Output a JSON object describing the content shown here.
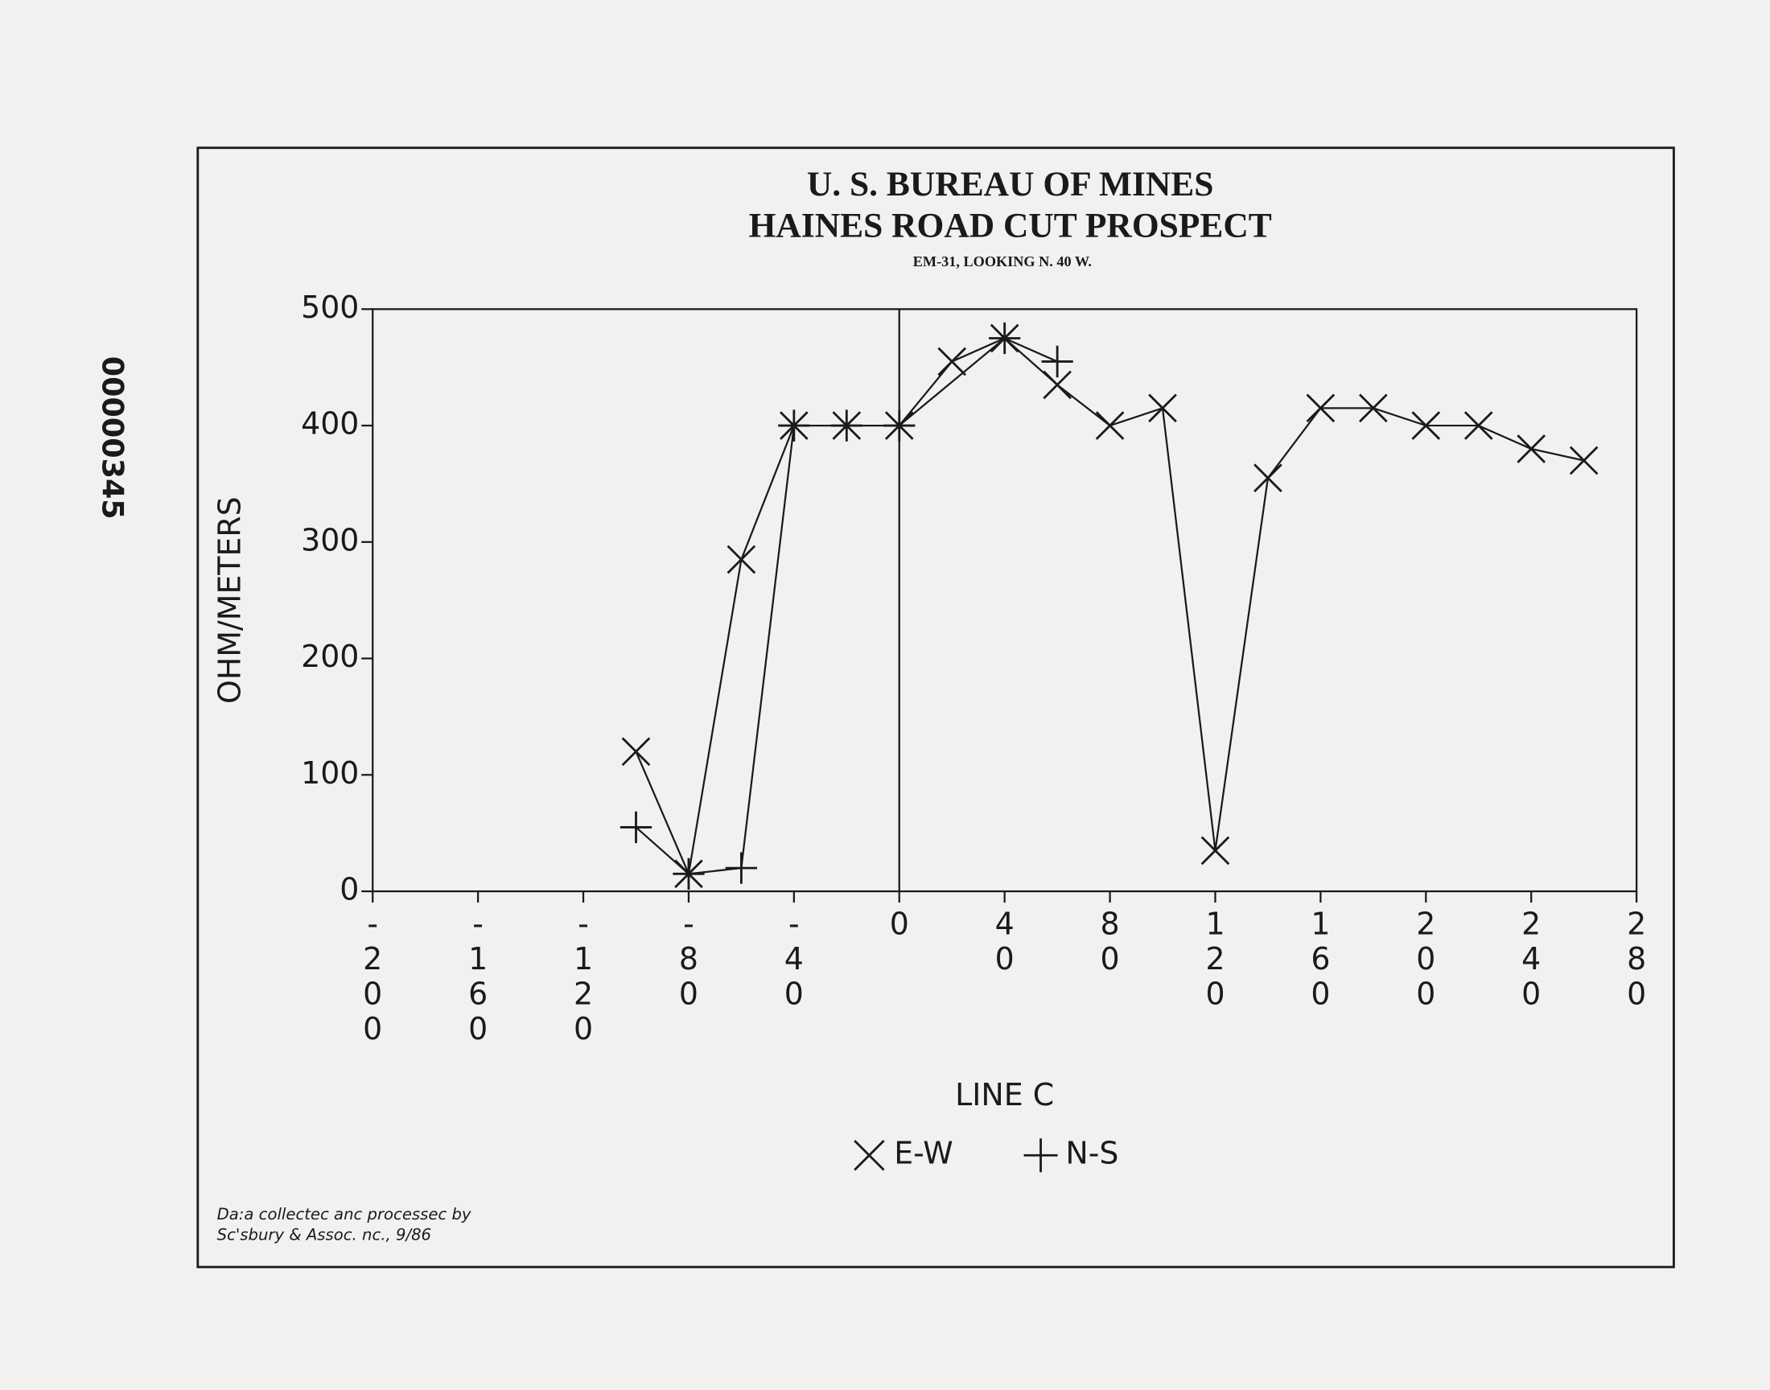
{
  "page_stamp": "00000345",
  "chart_data": {
    "type": "line",
    "title": "U. S. BUREAU OF MINES",
    "subtitle": "HAINES ROAD CUT PROSPECT",
    "caption": "EM-31, LOOKING N. 40 W.",
    "y_label": "OHM/METERS",
    "x_label": "LINE C",
    "xlim": [
      -200,
      280
    ],
    "xticks": [
      -200,
      -160,
      -120,
      -80,
      -40,
      0,
      40,
      80,
      120,
      160,
      200,
      240,
      280
    ],
    "ylim": [
      0,
      500
    ],
    "yticks": [
      0,
      100,
      200,
      300,
      400,
      500
    ],
    "series": [
      {
        "name": "E-W",
        "marker": "x",
        "color": "#1a1a1a",
        "x": [
          -100,
          -80,
          -60,
          -40,
          -20,
          0,
          20,
          40,
          60,
          80,
          100,
          120,
          140,
          160,
          180,
          200,
          220,
          240,
          260
        ],
        "values": [
          120,
          15,
          285,
          400,
          400,
          400,
          455,
          475,
          435,
          400,
          415,
          35,
          355,
          415,
          415,
          400,
          400,
          380,
          370
        ]
      },
      {
        "name": "N-S",
        "marker": "plus",
        "color": "#1a1a1a",
        "x": [
          -100,
          -80,
          -60,
          -40,
          -20,
          0,
          40,
          60
        ],
        "values": [
          55,
          15,
          20,
          400,
          400,
          400,
          475,
          455
        ]
      }
    ]
  },
  "footnote": [
    "Da:a collectec anc processec by",
    "Sc'sbury & Assoc. nc., 9/86"
  ]
}
